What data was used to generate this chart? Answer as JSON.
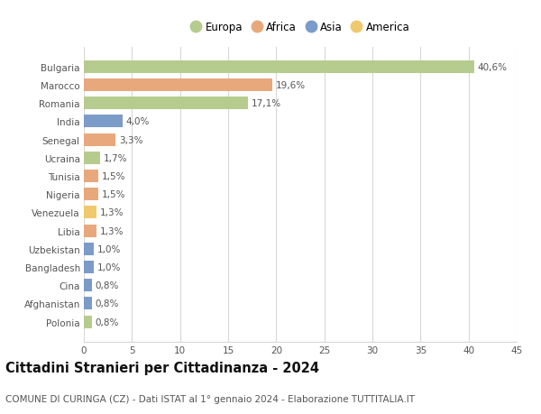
{
  "title": "Cittadini Stranieri per Cittadinanza - 2024",
  "subtitle": "COMUNE DI CURINGA (CZ) - Dati ISTAT al 1° gennaio 2024 - Elaborazione TUTTITALIA.IT",
  "countries": [
    "Bulgaria",
    "Marocco",
    "Romania",
    "India",
    "Senegal",
    "Ucraina",
    "Tunisia",
    "Nigeria",
    "Venezuela",
    "Libia",
    "Uzbekistan",
    "Bangladesh",
    "Cina",
    "Afghanistan",
    "Polonia"
  ],
  "values": [
    40.6,
    19.6,
    17.1,
    4.0,
    3.3,
    1.7,
    1.5,
    1.5,
    1.3,
    1.3,
    1.0,
    1.0,
    0.8,
    0.8,
    0.8
  ],
  "labels": [
    "40,6%",
    "19,6%",
    "17,1%",
    "4,0%",
    "3,3%",
    "1,7%",
    "1,5%",
    "1,5%",
    "1,3%",
    "1,3%",
    "1,0%",
    "1,0%",
    "0,8%",
    "0,8%",
    "0,8%"
  ],
  "continents": [
    "Europa",
    "Africa",
    "Europa",
    "Asia",
    "Africa",
    "Europa",
    "Africa",
    "Africa",
    "America",
    "Africa",
    "Asia",
    "Asia",
    "Asia",
    "Asia",
    "Europa"
  ],
  "continent_colors": {
    "Europa": "#b5cc8e",
    "Africa": "#e8a87c",
    "Asia": "#7b9bc8",
    "America": "#f0c96e"
  },
  "legend_order": [
    "Europa",
    "Africa",
    "Asia",
    "America"
  ],
  "xlim": [
    0,
    45
  ],
  "xticks": [
    0,
    5,
    10,
    15,
    20,
    25,
    30,
    35,
    40,
    45
  ],
  "background_color": "#ffffff",
  "plot_bg_color": "#ffffff",
  "grid_color": "#d8d8d8",
  "bar_height": 0.7,
  "label_fontsize": 7.5,
  "title_fontsize": 10.5,
  "subtitle_fontsize": 7.5,
  "tick_fontsize": 7.5,
  "legend_fontsize": 8.5
}
